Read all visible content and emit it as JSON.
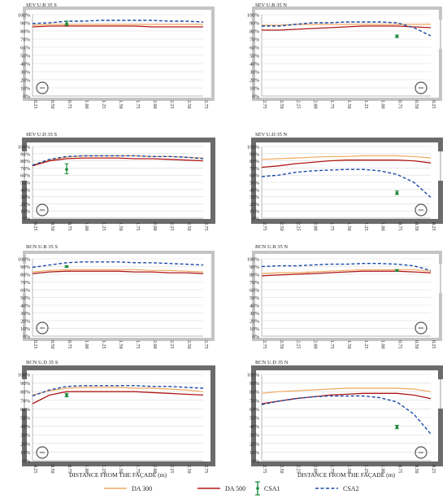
{
  "figure": {
    "xlabel": "DISTANCE FROM THE FAÇADE (m)",
    "legend": [
      {
        "name": "DA 300",
        "color": "#f0a860",
        "style": "solid"
      },
      {
        "name": "DA 500",
        "color": "#b01818",
        "style": "solid"
      },
      {
        "name": "CSA1",
        "color": "#1a8a3a",
        "style": "errorbar"
      },
      {
        "name": "CSA2",
        "color": "#1a4aa8",
        "style": "dashed"
      }
    ],
    "colors": {
      "da300": "#f0a860",
      "da500": "#b01818",
      "csa1": "#1a8a3a",
      "csa2": "#1a4aa8",
      "wall": "#8c8c8c",
      "grid": "#d9d9d9"
    }
  },
  "chart_data": [
    {
      "type": "line",
      "title": "SEV U.B 35 S",
      "xlabel": "DISTANCE FROM THE FAÇADE (m)",
      "categories": [
        "0.25",
        "0.50",
        "0.75",
        "1.00",
        "1.25",
        "1.50",
        "1.75",
        "2.00",
        "2.25",
        "2.50",
        "2.75"
      ],
      "ylim": [
        0,
        100
      ],
      "yticks": [
        "0%",
        "10%",
        "20%",
        "30%",
        "40%",
        "50%",
        "60%",
        "70%",
        "80%",
        "90%",
        "100%"
      ],
      "series": [
        {
          "name": "DA 300",
          "values": [
            87,
            88,
            88,
            88,
            88,
            88,
            88,
            88,
            88,
            88,
            88
          ]
        },
        {
          "name": "DA 500",
          "values": [
            85,
            86,
            86,
            86,
            86,
            86,
            86,
            85,
            85,
            85,
            85
          ]
        },
        {
          "name": "CSA2",
          "values": [
            89,
            90,
            92,
            92,
            93,
            93,
            93,
            93,
            92,
            92,
            91
          ]
        }
      ],
      "csa1": {
        "x": "0.75",
        "value": 89,
        "low": 87,
        "high": 92
      }
    },
    {
      "type": "line",
      "title": "SEV U.B 35 N",
      "xlabel": "DISTANCE FROM THE FAÇADE (m)",
      "categories": [
        "2.75",
        "2.50",
        "2.25",
        "2.00",
        "1.75",
        "1.50",
        "1.25",
        "1.00",
        "0.75",
        "0.50",
        "0.25"
      ],
      "ylim": [
        0,
        100
      ],
      "yticks": [
        "0%",
        "10%",
        "20%",
        "30%",
        "40%",
        "50%",
        "60%",
        "70%",
        "80%",
        "90%",
        "100%"
      ],
      "series": [
        {
          "name": "DA 300",
          "values": [
            87,
            87,
            88,
            88,
            88,
            88,
            88,
            88,
            88,
            88,
            88
          ]
        },
        {
          "name": "DA 500",
          "values": [
            81,
            81,
            82,
            83,
            84,
            85,
            86,
            86,
            86,
            85,
            84
          ]
        },
        {
          "name": "CSA2",
          "values": [
            86,
            86,
            88,
            90,
            90,
            91,
            91,
            91,
            90,
            84,
            74
          ]
        }
      ],
      "csa1": {
        "x": "0.75",
        "value": 73,
        "low": 72,
        "high": 75
      }
    },
    {
      "type": "line",
      "title": "SEV U.D 35 S",
      "xlabel": "DISTANCE FROM THE FAÇADE (m)",
      "categories": [
        "0.25",
        "0.50",
        "0.75",
        "1.00",
        "1.25",
        "1.50",
        "1.75",
        "2.00",
        "2.25",
        "2.50",
        "2.75"
      ],
      "ylim": [
        0,
        100
      ],
      "yticks": [
        "0%",
        "10%",
        "20%",
        "30%",
        "40%",
        "50%",
        "60%",
        "70%",
        "80%",
        "90%",
        "100%"
      ],
      "series": [
        {
          "name": "DA 300",
          "values": [
            74,
            81,
            85,
            87,
            87,
            87,
            87,
            86,
            86,
            85,
            84
          ]
        },
        {
          "name": "DA 500",
          "values": [
            73,
            80,
            83,
            84,
            84,
            84,
            83,
            83,
            82,
            81,
            80
          ]
        },
        {
          "name": "CSA2",
          "values": [
            74,
            82,
            86,
            87,
            87,
            87,
            87,
            86,
            86,
            85,
            83
          ]
        }
      ],
      "csa1": {
        "x": "0.75",
        "value": 68,
        "low": 62,
        "high": 76
      }
    },
    {
      "type": "line",
      "title": "SEV U.D 35 N",
      "xlabel": "DISTANCE FROM THE FAÇADE (m)",
      "categories": [
        "2.75",
        "2.50",
        "2.25",
        "2.00",
        "1.75",
        "1.50",
        "1.25",
        "1.00",
        "0.75",
        "0.50",
        "0.25"
      ],
      "ylim": [
        0,
        100
      ],
      "yticks": [
        "0%",
        "10%",
        "20%",
        "30%",
        "40%",
        "50%",
        "60%",
        "70%",
        "80%",
        "90%",
        "100%"
      ],
      "series": [
        {
          "name": "DA 300",
          "values": [
            82,
            83,
            84,
            85,
            86,
            86,
            87,
            87,
            87,
            86,
            84
          ]
        },
        {
          "name": "DA 500",
          "values": [
            71,
            73,
            76,
            78,
            80,
            81,
            81,
            81,
            81,
            80,
            77
          ]
        },
        {
          "name": "CSA2",
          "values": [
            58,
            60,
            64,
            66,
            67,
            68,
            68,
            66,
            61,
            50,
            29
          ]
        }
      ],
      "csa1": {
        "x": "0.75",
        "value": 35,
        "low": 33,
        "high": 38
      }
    },
    {
      "type": "line",
      "title": "BCN U.B 35 S",
      "xlabel": "DISTANCE FROM THE FAÇADE (m)",
      "categories": [
        "0.25",
        "0.50",
        "0.75",
        "1.00",
        "1.25",
        "1.50",
        "1.75",
        "2.00",
        "2.25",
        "2.50",
        "2.75"
      ],
      "ylim": [
        0,
        100
      ],
      "yticks": [
        "0%",
        "10%",
        "20%",
        "30%",
        "40%",
        "50%",
        "60%",
        "70%",
        "80%",
        "90%",
        "100%"
      ],
      "series": [
        {
          "name": "DA 300",
          "values": [
            83,
            85,
            86,
            86,
            86,
            86,
            86,
            85,
            85,
            84,
            83
          ]
        },
        {
          "name": "DA 500",
          "values": [
            81,
            83,
            84,
            84,
            84,
            84,
            83,
            83,
            82,
            82,
            81
          ]
        },
        {
          "name": "CSA2",
          "values": [
            89,
            92,
            95,
            96,
            96,
            96,
            95,
            95,
            94,
            93,
            92
          ]
        }
      ],
      "csa1": {
        "x": "0.75",
        "value": 90,
        "low": 89,
        "high": 91
      }
    },
    {
      "type": "line",
      "title": "BCN U.B 35 N",
      "xlabel": "DISTANCE FROM THE FAÇADE (m)",
      "categories": [
        "2.75",
        "2.50",
        "2.25",
        "2.00",
        "1.75",
        "1.50",
        "1.25",
        "1.00",
        "0.75",
        "0.50",
        "0.25"
      ],
      "ylim": [
        0,
        100
      ],
      "yticks": [
        "0%",
        "10%",
        "20%",
        "30%",
        "40%",
        "50%",
        "60%",
        "70%",
        "80%",
        "90%",
        "100%"
      ],
      "series": [
        {
          "name": "DA 300",
          "values": [
            81,
            82,
            82,
            83,
            84,
            85,
            86,
            86,
            86,
            86,
            84
          ]
        },
        {
          "name": "DA 500",
          "values": [
            78,
            79,
            80,
            81,
            82,
            83,
            84,
            84,
            84,
            83,
            82
          ]
        },
        {
          "name": "CSA2",
          "values": [
            90,
            91,
            91,
            92,
            93,
            93,
            94,
            94,
            93,
            91,
            85
          ]
        }
      ],
      "csa1": {
        "x": "0.75",
        "value": 85,
        "low": 84,
        "high": 86
      }
    },
    {
      "type": "line",
      "title": "BCN U.D 35 S",
      "xlabel": "DISTANCE FROM THE FAÇADE (m)",
      "categories": [
        "0.25",
        "0.50",
        "0.75",
        "1.00",
        "1.25",
        "1.50",
        "1.75",
        "2.00",
        "2.25",
        "2.50",
        "2.75"
      ],
      "ylim": [
        0,
        100
      ],
      "yticks": [
        "0%",
        "10%",
        "20%",
        "30%",
        "40%",
        "50%",
        "60%",
        "70%",
        "80%",
        "90%",
        "100%"
      ],
      "series": [
        {
          "name": "DA 300",
          "values": [
            76,
            81,
            84,
            85,
            85,
            85,
            84,
            84,
            83,
            82,
            80
          ]
        },
        {
          "name": "DA 500",
          "values": [
            66,
            76,
            80,
            80,
            80,
            80,
            80,
            79,
            78,
            77,
            76
          ]
        },
        {
          "name": "CSA2",
          "values": [
            75,
            82,
            86,
            87,
            87,
            87,
            87,
            86,
            86,
            85,
            84
          ]
        }
      ],
      "csa1": {
        "x": "0.75",
        "value": 76,
        "low": 74,
        "high": 78
      }
    },
    {
      "type": "line",
      "title": "BCN U.D 35 N",
      "xlabel": "DISTANCE FROM THE FAÇADE (m)",
      "categories": [
        "2.75",
        "2.50",
        "2.25",
        "2.00",
        "1.75",
        "1.50",
        "1.25",
        "1.00",
        "0.75",
        "0.50",
        "0.25"
      ],
      "ylim": [
        0,
        100
      ],
      "yticks": [
        "0%",
        "10%",
        "20%",
        "30%",
        "40%",
        "50%",
        "60%",
        "70%",
        "80%",
        "90%",
        "100%"
      ],
      "series": [
        {
          "name": "DA 300",
          "values": [
            78,
            80,
            81,
            82,
            83,
            84,
            84,
            84,
            84,
            83,
            80
          ]
        },
        {
          "name": "DA 500",
          "values": [
            66,
            69,
            72,
            74,
            76,
            77,
            78,
            78,
            78,
            76,
            72
          ]
        },
        {
          "name": "CSA2",
          "values": [
            65,
            69,
            72,
            74,
            75,
            75,
            75,
            73,
            68,
            54,
            31
          ]
        }
      ],
      "csa1": {
        "x": "0.75",
        "value": 39,
        "low": 37,
        "high": 41
      }
    }
  ]
}
